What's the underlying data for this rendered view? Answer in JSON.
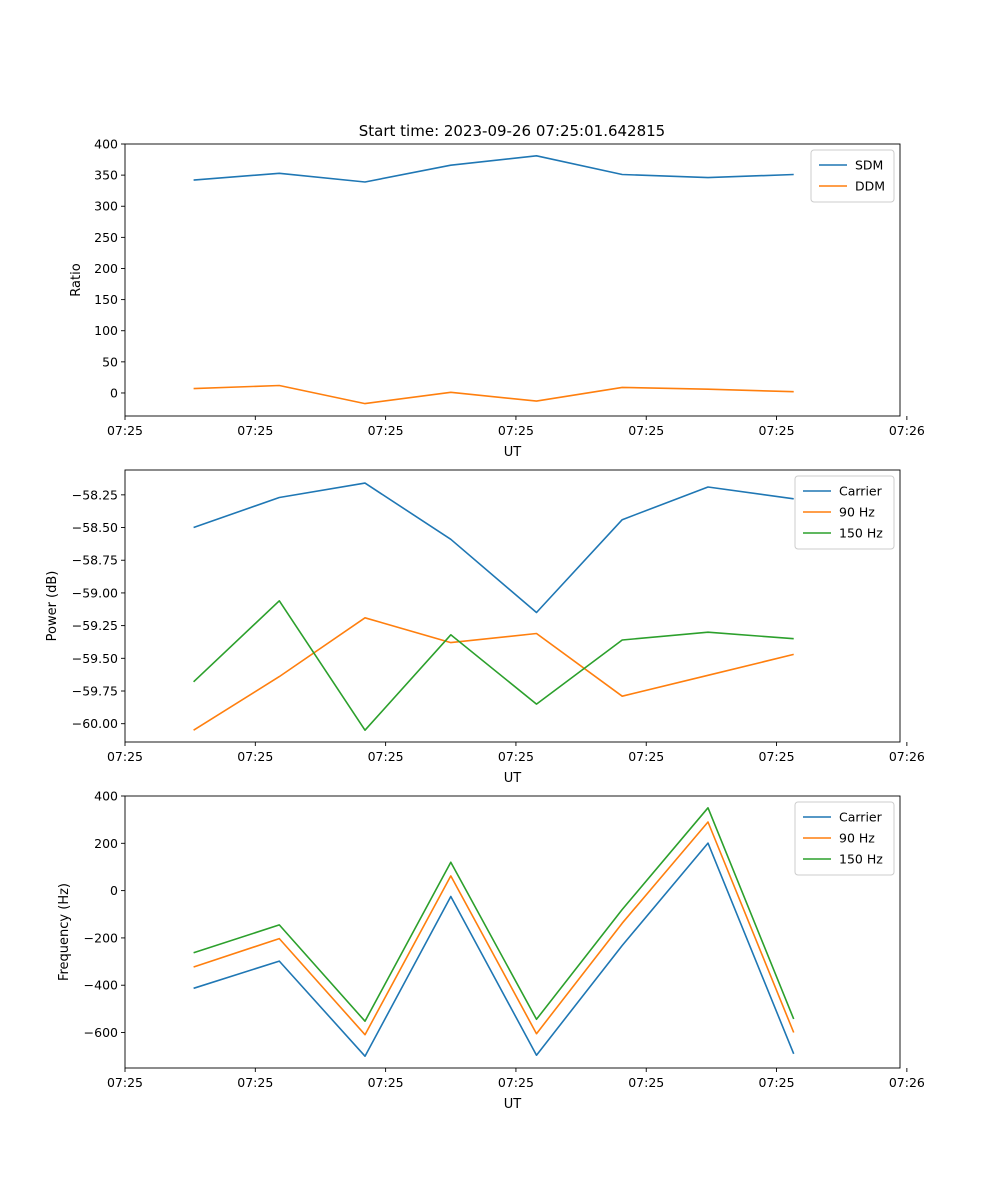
{
  "figure_title": "Start time: 2023-09-26 07:25:01.642815",
  "colors": {
    "blue": "#1f77b4",
    "orange": "#ff7f0e",
    "green": "#2ca02c"
  },
  "chart_data": [
    {
      "type": "line",
      "title": "Start time: 2023-09-26 07:25:01.642815",
      "xlabel": "UT",
      "ylabel": "Ratio",
      "x": [
        1,
        2,
        3,
        4,
        5,
        6,
        7,
        8
      ],
      "xlim": [
        0.2,
        9.24
      ],
      "x_tick_positions": [
        0.2,
        1.72,
        3.24,
        4.76,
        6.28,
        7.8,
        9.32
      ],
      "x_tick_labels": [
        "07:25",
        "07:25",
        "07:25",
        "07:25",
        "07:25",
        "07:25",
        "07:26"
      ],
      "ylim": [
        -37,
        400
      ],
      "y_ticks": [
        0,
        50,
        100,
        150,
        200,
        250,
        300,
        350,
        400
      ],
      "y_tick_labels": [
        "0",
        "50",
        "100",
        "150",
        "200",
        "250",
        "300",
        "350",
        "400"
      ],
      "legend": "top-right",
      "series": [
        {
          "name": "SDM",
          "color": "#1f77b4",
          "values": [
            342,
            353,
            339,
            366,
            381,
            351,
            346,
            351
          ]
        },
        {
          "name": "DDM",
          "color": "#ff7f0e",
          "values": [
            7,
            12,
            -17,
            1,
            -13,
            9,
            6,
            2
          ]
        }
      ]
    },
    {
      "type": "line",
      "title": "",
      "xlabel": "UT",
      "ylabel": "Power (dB)",
      "x": [
        1,
        2,
        3,
        4,
        5,
        6,
        7,
        8
      ],
      "xlim": [
        0.2,
        9.24
      ],
      "x_tick_positions": [
        0.2,
        1.72,
        3.24,
        4.76,
        6.28,
        7.8,
        9.32
      ],
      "x_tick_labels": [
        "07:25",
        "07:25",
        "07:25",
        "07:25",
        "07:25",
        "07:25",
        "07:26"
      ],
      "ylim": [
        -60.14,
        -58.06
      ],
      "y_ticks": [
        -60.0,
        -59.75,
        -59.5,
        -59.25,
        -59.0,
        -58.75,
        -58.5,
        -58.25
      ],
      "y_tick_labels": [
        "−60.00",
        "−59.75",
        "−59.50",
        "−59.25",
        "−59.00",
        "−58.75",
        "−58.50",
        "−58.25"
      ],
      "legend": "top-right",
      "series": [
        {
          "name": "Carrier",
          "color": "#1f77b4",
          "values": [
            -58.5,
            -58.27,
            -58.16,
            -58.59,
            -59.15,
            -58.44,
            -58.19,
            -58.28
          ]
        },
        {
          "name": "90 Hz",
          "color": "#ff7f0e",
          "values": [
            -60.05,
            -59.64,
            -59.19,
            -59.38,
            -59.31,
            -59.79,
            -59.63,
            -59.47
          ]
        },
        {
          "name": "150 Hz",
          "color": "#2ca02c",
          "values": [
            -59.68,
            -59.06,
            -60.05,
            -59.32,
            -59.85,
            -59.36,
            -59.3,
            -59.35
          ]
        }
      ]
    },
    {
      "type": "line",
      "title": "",
      "xlabel": "UT",
      "ylabel": "Frequency (Hz)",
      "x": [
        1,
        2,
        3,
        4,
        5,
        6,
        7,
        8
      ],
      "xlim": [
        0.2,
        9.24
      ],
      "x_tick_positions": [
        0.2,
        1.72,
        3.24,
        4.76,
        6.28,
        7.8,
        9.32
      ],
      "x_tick_labels": [
        "07:25",
        "07:25",
        "07:25",
        "07:25",
        "07:25",
        "07:25",
        "07:26"
      ],
      "ylim": [
        -750,
        400
      ],
      "y_ticks": [
        -600,
        -400,
        -200,
        0,
        200,
        400
      ],
      "y_tick_labels": [
        "−600",
        "−400",
        "−200",
        "0",
        "200",
        "400"
      ],
      "legend": "top-right",
      "series": [
        {
          "name": "Carrier",
          "color": "#1f77b4",
          "values": [
            -413,
            -298,
            -700,
            -25,
            -696,
            -232,
            201,
            -690
          ]
        },
        {
          "name": "90 Hz",
          "color": "#ff7f0e",
          "values": [
            -323,
            -203,
            -609,
            62,
            -605,
            -138,
            290,
            -600
          ]
        },
        {
          "name": "150 Hz",
          "color": "#2ca02c",
          "values": [
            -263,
            -145,
            -552,
            120,
            -544,
            -80,
            350,
            -543
          ]
        }
      ]
    }
  ]
}
